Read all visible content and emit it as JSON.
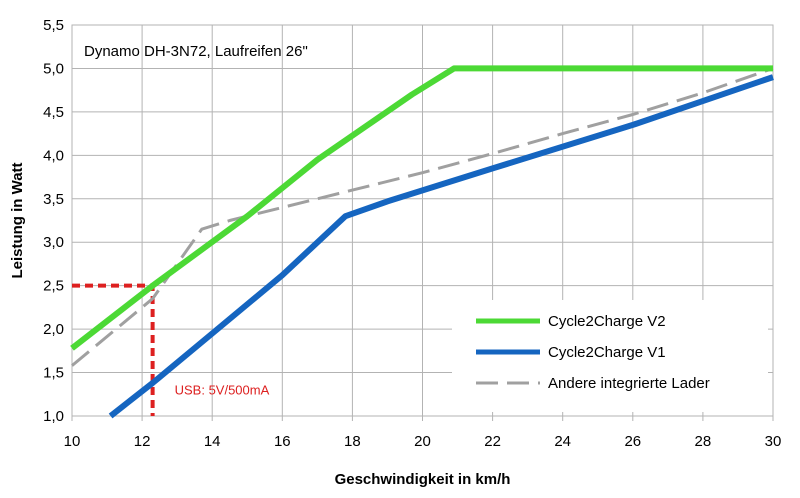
{
  "chart_data": {
    "type": "line",
    "title": "Dynamo DH-3N72, Laufreifen 26\"",
    "xlabel": "Geschwindigkeit in km/h",
    "ylabel": "Leistung in Watt",
    "xlim": [
      10,
      30
    ],
    "ylim": [
      1.0,
      5.5
    ],
    "x_ticks": [
      10,
      12,
      14,
      16,
      18,
      20,
      22,
      24,
      26,
      28,
      30
    ],
    "y_ticks": [
      1.0,
      1.5,
      2.0,
      2.5,
      3.0,
      3.5,
      4.0,
      4.5,
      5.0,
      5.5
    ],
    "y_tick_labels": [
      "1,0",
      "1,5",
      "2,0",
      "2,5",
      "3,0",
      "3,5",
      "4,0",
      "4,5",
      "5,0",
      "5,5"
    ],
    "grid": true,
    "legend_position": "bottom-right",
    "series": [
      {
        "name": "Cycle2Charge V2",
        "color": "#4cd935",
        "style": "solid",
        "points": [
          [
            10,
            1.78
          ],
          [
            12.3,
            2.5
          ],
          [
            15,
            3.3
          ],
          [
            17,
            3.95
          ],
          [
            19.7,
            4.7
          ],
          [
            20.9,
            5.0
          ],
          [
            30,
            5.0
          ]
        ]
      },
      {
        "name": "Cycle2Charge V1",
        "color": "#1565c0",
        "style": "solid",
        "points": [
          [
            11.1,
            1.0
          ],
          [
            12.3,
            1.38
          ],
          [
            14,
            1.95
          ],
          [
            16,
            2.62
          ],
          [
            17.8,
            3.3
          ],
          [
            19,
            3.47
          ],
          [
            22,
            3.85
          ],
          [
            26,
            4.35
          ],
          [
            30,
            4.9
          ]
        ]
      },
      {
        "name": "Andere integrierte Lader",
        "color": "#a0a0a0",
        "style": "dashed",
        "points": [
          [
            10,
            1.58
          ],
          [
            12.3,
            2.35
          ],
          [
            13.7,
            3.15
          ],
          [
            14.5,
            3.25
          ],
          [
            16,
            3.4
          ],
          [
            18,
            3.6
          ],
          [
            20,
            3.8
          ],
          [
            22,
            4.02
          ],
          [
            24,
            4.25
          ],
          [
            26,
            4.47
          ],
          [
            28,
            4.72
          ],
          [
            30,
            5.0
          ]
        ]
      }
    ],
    "annotations": [
      {
        "text": "USB: 5V/500mA",
        "color": "#dd2020",
        "x": 12.3,
        "y": 2.5
      }
    ]
  }
}
